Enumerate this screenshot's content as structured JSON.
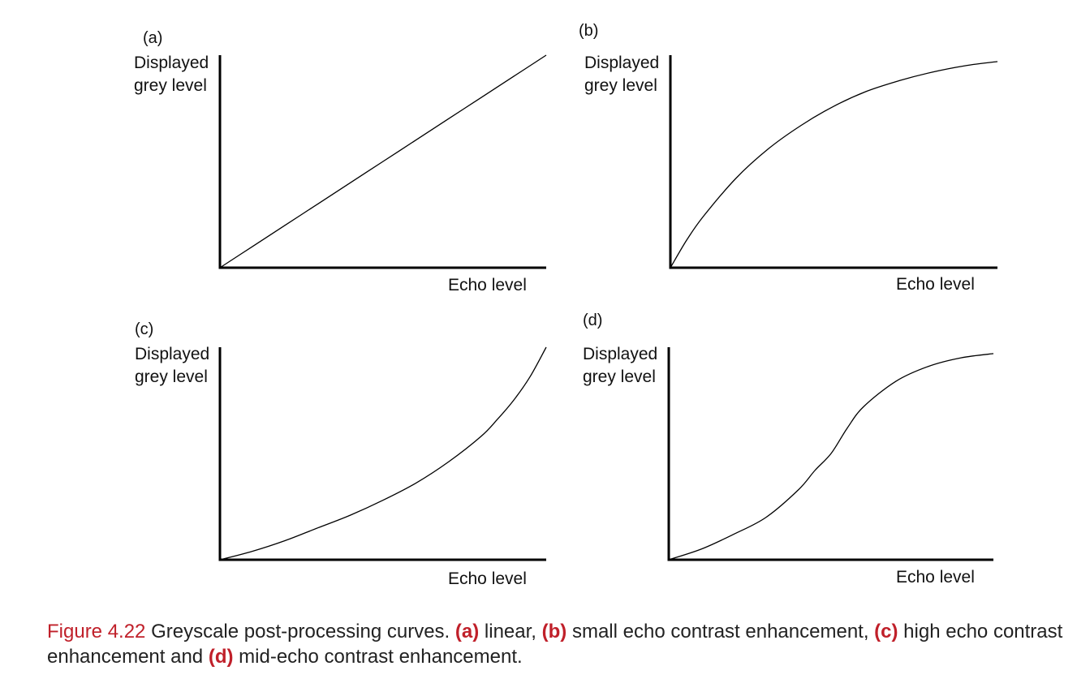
{
  "figure": {
    "number": "Figure 4.22",
    "caption_text": "Greyscale post-processing curves.",
    "parts": [
      {
        "key": "(a)",
        "text": " linear,"
      },
      {
        "key": "(b)",
        "text": " small echo contrast enhancement,"
      },
      {
        "key": "(c)",
        "text": " high echo contrast enhancement and"
      },
      {
        "key": "(d)",
        "text": " mid-echo contrast enhancement."
      }
    ]
  },
  "chart_data": [
    {
      "type": "line",
      "panel": "(a)",
      "ylabel_line1": "Displayed",
      "ylabel_line2": "grey level",
      "xlabel": "Echo level",
      "xlim": [
        0,
        1
      ],
      "ylim": [
        0,
        1
      ],
      "grid": false,
      "x": [
        0,
        0.1,
        0.2,
        0.3,
        0.4,
        0.5,
        0.6,
        0.7,
        0.8,
        0.9,
        1.0
      ],
      "y": [
        0,
        0.1,
        0.2,
        0.3,
        0.4,
        0.5,
        0.6,
        0.7,
        0.8,
        0.9,
        1.0
      ]
    },
    {
      "type": "line",
      "panel": "(b)",
      "ylabel_line1": "Displayed",
      "ylabel_line2": "grey level",
      "xlabel": "Echo level",
      "xlim": [
        0,
        1
      ],
      "ylim": [
        0,
        1
      ],
      "grid": false,
      "x": [
        0,
        0.05,
        0.1,
        0.2,
        0.3,
        0.4,
        0.5,
        0.6,
        0.7,
        0.8,
        0.9,
        1.0
      ],
      "y": [
        0,
        0.13,
        0.24,
        0.42,
        0.56,
        0.67,
        0.76,
        0.83,
        0.88,
        0.92,
        0.95,
        0.97
      ]
    },
    {
      "type": "line",
      "panel": "(c)",
      "ylabel_line1": "Displayed",
      "ylabel_line2": "grey level",
      "xlabel": "Echo level",
      "xlim": [
        0,
        1
      ],
      "ylim": [
        0,
        1
      ],
      "grid": false,
      "x": [
        0,
        0.1,
        0.2,
        0.3,
        0.4,
        0.5,
        0.6,
        0.7,
        0.8,
        0.85,
        0.9,
        0.95,
        1.0
      ],
      "y": [
        0,
        0.04,
        0.09,
        0.15,
        0.21,
        0.28,
        0.36,
        0.46,
        0.58,
        0.66,
        0.75,
        0.86,
        1.0
      ]
    },
    {
      "type": "line",
      "panel": "(d)",
      "ylabel_line1": "Displayed",
      "ylabel_line2": "grey level",
      "xlabel": "Echo level",
      "xlim": [
        0,
        1
      ],
      "ylim": [
        0,
        1
      ],
      "grid": false,
      "x": [
        0,
        0.1,
        0.2,
        0.3,
        0.4,
        0.45,
        0.5,
        0.55,
        0.6,
        0.7,
        0.8,
        0.9,
        1.0
      ],
      "y": [
        0,
        0.05,
        0.12,
        0.2,
        0.33,
        0.42,
        0.5,
        0.62,
        0.72,
        0.84,
        0.91,
        0.95,
        0.97
      ]
    }
  ]
}
